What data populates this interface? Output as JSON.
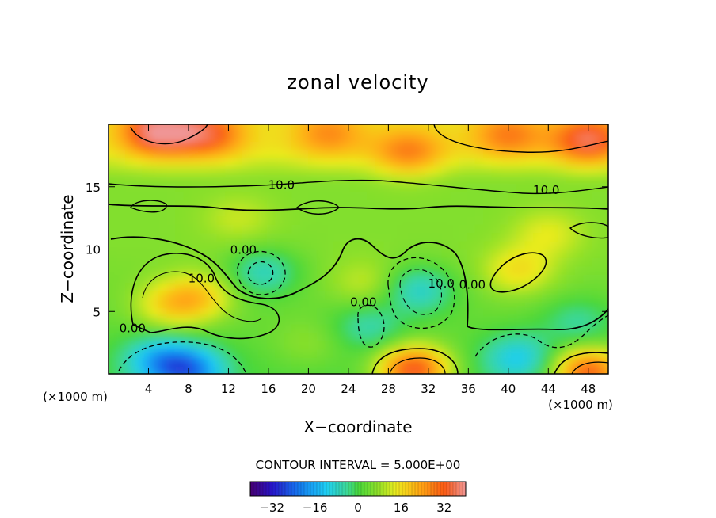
{
  "chart_data": {
    "type": "heatmap",
    "title": "zonal velocity",
    "xlabel": "X−coordinate",
    "ylabel": "Z−coordinate",
    "x_unit": "(×1000 m)",
    "x_ticks": [
      4,
      8,
      12,
      16,
      20,
      24,
      28,
      32,
      36,
      40,
      44,
      48
    ],
    "y_ticks": [
      5,
      10,
      15
    ],
    "xlim": [
      0,
      50
    ],
    "ylim": [
      0,
      20
    ],
    "grid": false,
    "contour_interval_text": "CONTOUR INTERVAL = 5.000E+00",
    "colorbar": {
      "range": [
        -40,
        40
      ],
      "ticks": [
        -32,
        -16,
        0,
        16,
        32
      ]
    },
    "contour_labels": [
      {
        "text": "10.0",
        "x": 9.3,
        "z": 7.7
      },
      {
        "text": "0.00",
        "x": 13.5,
        "z": 10.0
      },
      {
        "text": "10.0",
        "x": 17.3,
        "z": 15.2
      },
      {
        "text": "0.00",
        "x": 2.4,
        "z": 3.7
      },
      {
        "text": "0.00",
        "x": 25.5,
        "z": 5.8
      },
      {
        "text": "10.0",
        "x": 33.3,
        "z": 7.3
      },
      {
        "text": "0.00",
        "x": 36.4,
        "z": 7.2
      },
      {
        "text": "10.0",
        "x": 43.8,
        "z": 14.8
      }
    ],
    "features": [
      {
        "x": 5,
        "z": 19.5,
        "value": 30
      },
      {
        "x": 10,
        "z": 19.3,
        "value": 22
      },
      {
        "x": 22,
        "z": 19.3,
        "value": 16
      },
      {
        "x": 40,
        "z": 19.2,
        "value": 18
      },
      {
        "x": 48,
        "z": 18.8,
        "value": 26
      },
      {
        "x": 30,
        "z": 17.8,
        "value": 18
      },
      {
        "x": 9,
        "z": 6.2,
        "value": 14
      },
      {
        "x": 6,
        "z": 5.5,
        "value": 12
      },
      {
        "x": 15.5,
        "z": 8.2,
        "value": -11
      },
      {
        "x": 31,
        "z": 6.8,
        "value": -12
      },
      {
        "x": 26,
        "z": 3.8,
        "value": -8
      },
      {
        "x": 8,
        "z": 0.3,
        "value": -22
      },
      {
        "x": 5,
        "z": 1.2,
        "value": -14
      },
      {
        "x": 41,
        "z": 1.3,
        "value": -13
      },
      {
        "x": 47,
        "z": 4.2,
        "value": -7
      },
      {
        "x": 30.5,
        "z": 0.4,
        "value": 32
      },
      {
        "x": 48,
        "z": 0.2,
        "value": 30
      },
      {
        "x": 41,
        "z": 8.3,
        "value": 12
      },
      {
        "x": 13,
        "z": 12.5,
        "value": 7
      },
      {
        "x": 44,
        "z": 11.3,
        "value": 9
      },
      {
        "x": 20,
        "z": 2.5,
        "value": 5
      },
      {
        "x": 25.8,
        "z": 7.3,
        "value": 8
      }
    ],
    "background": {
      "top": 14,
      "middle": 6,
      "bottom": 1
    }
  }
}
